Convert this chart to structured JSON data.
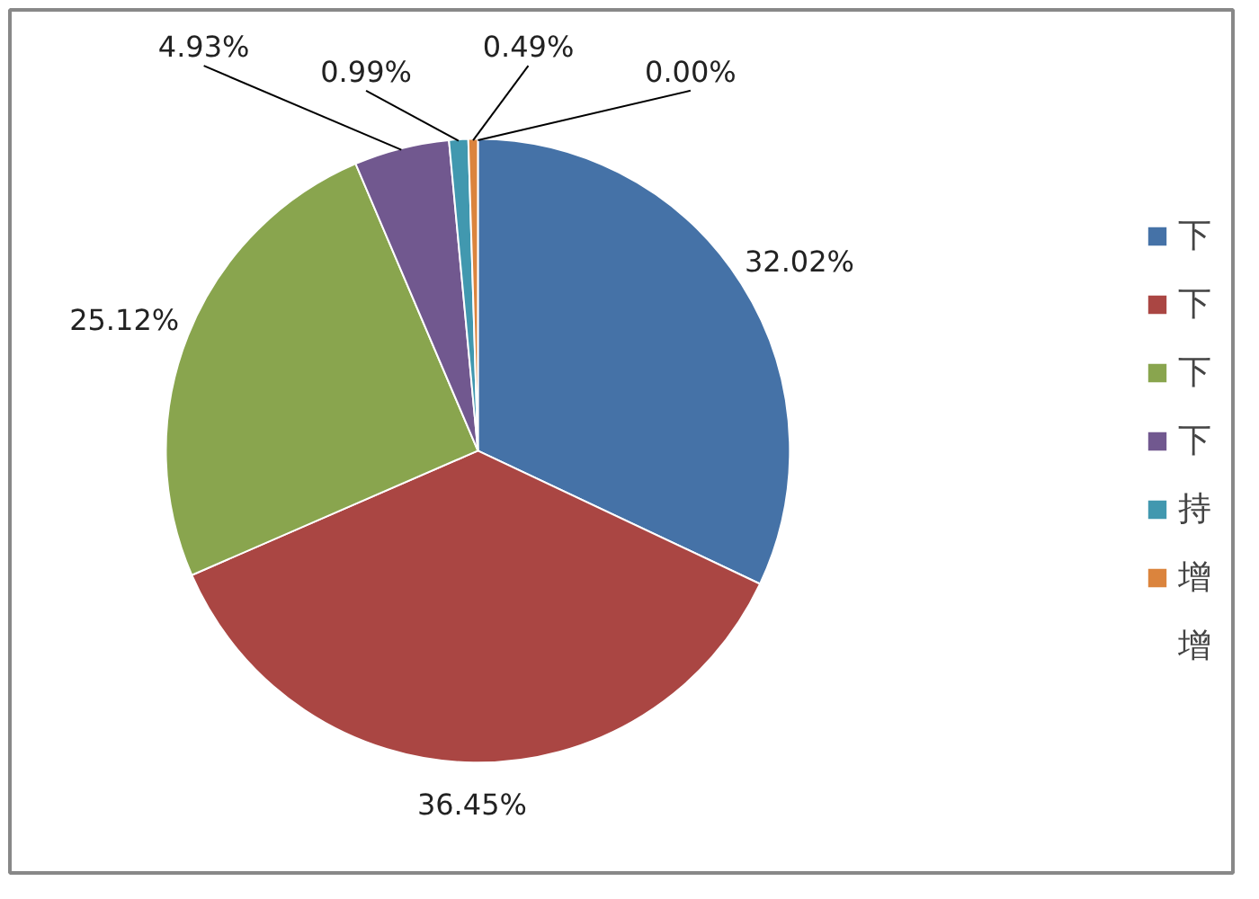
{
  "chart_data": {
    "type": "pie",
    "categories": [
      "下",
      "下",
      "下",
      "下",
      "持",
      "增",
      "增"
    ],
    "values": [
      32.02,
      36.45,
      25.12,
      4.93,
      0.99,
      0.49,
      0.0
    ],
    "value_labels": [
      "32.02%",
      "36.45%",
      "25.12%",
      "4.93%",
      "0.99%",
      "0.49%",
      "0.00%"
    ],
    "colors": [
      "#4572a7",
      "#aa4643",
      "#89a54e",
      "#71588f",
      "#4198af",
      "#db843d",
      "#93a9cf"
    ],
    "legend": "right"
  }
}
